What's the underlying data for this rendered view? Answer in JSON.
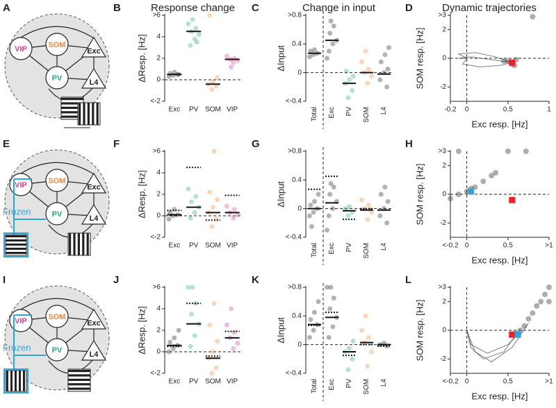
{
  "diagrams": [
    {
      "panel": "A",
      "nodes": [
        "VIP",
        "SOM",
        "PV",
        "Exc",
        "L4"
      ],
      "colors": [
        "#e0409a",
        "#f08a3c",
        "#2ca87a",
        "#222222",
        "#222222"
      ]
    },
    {
      "panel": "E",
      "nodes": [
        "VIP",
        "SOM",
        "PV",
        "Exc",
        "L4"
      ],
      "colors": [
        "#e0409a",
        "#f08a3c",
        "#2ca87a",
        "#222222",
        "#222222"
      ],
      "frozen": "Frozen",
      "frozen_color": "#29a8e0"
    },
    {
      "panel": "I",
      "nodes": [
        "VIP",
        "SOM",
        "PV",
        "Exc",
        "L4"
      ],
      "colors": [
        "#e0409a",
        "#f08a3c",
        "#2ca87a",
        "#222222",
        "#222222"
      ],
      "frozen": "Frozen",
      "frozen_color": "#29a8e0"
    }
  ],
  "chart_data": [
    {
      "type": "strip",
      "panel": "B",
      "title": "Response change",
      "ylabel": "ΔResp. [Hz]",
      "ylim": [
        -2,
        6
      ],
      "yticks": [
        {
          "value": -2,
          "label": "<-2"
        },
        0,
        2,
        4,
        {
          "value": 6,
          "label": ">6"
        }
      ],
      "groups": [
        {
          "name": "Exc",
          "color": "#222222",
          "mean": 0.5,
          "points": [
            0.3,
            0.4,
            0.5,
            0.6,
            0.7,
            0.5
          ]
        },
        {
          "name": "PV",
          "color": "#2ca87a",
          "mean": 4.5,
          "points": [
            3.2,
            3.8,
            4.2,
            4.5,
            4.8,
            5.2,
            5.6,
            3.5
          ]
        },
        {
          "name": "SOM",
          "color": "#f08a3c",
          "mean": -0.4,
          "points": [
            -0.9,
            -0.6,
            -0.4,
            -0.2,
            0.2,
            6
          ]
        },
        {
          "name": "VIP",
          "color": "#e0409a",
          "mean": 1.9,
          "points": [
            1.6,
            1.8,
            1.9,
            2.0,
            2.2,
            1.2
          ]
        }
      ]
    },
    {
      "type": "strip",
      "panel": "C",
      "title": "Change in input",
      "ylabel": "ΔInput",
      "ylim": [
        -0.4,
        0.8
      ],
      "yticks": [
        {
          "value": -0.4,
          "label": "<-0.4"
        },
        0,
        0.4,
        {
          "value": 0.8,
          "label": ">0.8"
        }
      ],
      "groups": [
        {
          "name": "Total",
          "color": "#222222",
          "mean": 0.27,
          "points": [
            0.22,
            0.25,
            0.27,
            0.3,
            0.32
          ]
        },
        {
          "name": "Exc",
          "color": "#222222",
          "mean": 0.45,
          "points": [
            0.3,
            0.4,
            0.45,
            0.55,
            0.65,
            0.2,
            0.72
          ]
        },
        {
          "name": "PV",
          "color": "#2ca87a",
          "mean": -0.15,
          "points": [
            -0.35,
            -0.25,
            -0.15,
            -0.1,
            -0.05,
            0.02
          ]
        },
        {
          "name": "SOM",
          "color": "#f08a3c",
          "mean": 0.0,
          "points": [
            -0.15,
            -0.05,
            0,
            0.05,
            0.15,
            0.3
          ]
        },
        {
          "name": "L4",
          "color": "#222222",
          "mean": -0.02,
          "points": [
            -0.2,
            -0.1,
            0,
            0.05,
            0.15,
            0.25,
            0.35
          ]
        }
      ]
    },
    {
      "type": "trajectory",
      "panel": "D",
      "title": "Dynamic trajectories",
      "xlabel": "Exc resp. [Hz]",
      "ylabel": "SOM resp. [Hz]",
      "xlim": [
        -0.2,
        1
      ],
      "xticks": [
        -0.2,
        0,
        0.5,
        1
      ],
      "ylim": [
        -3,
        3
      ],
      "yticks": [
        -2,
        0,
        2,
        {
          "value": 3,
          "label": ">3"
        }
      ],
      "trajectories": [
        {
          "x": [
            0,
            -0.1,
            0.1,
            0.35,
            0.55
          ],
          "y": [
            0,
            0.3,
            0.4,
            0.1,
            -0.3
          ]
        },
        {
          "x": [
            0,
            -0.05,
            0.15,
            0.4,
            0.55
          ],
          "y": [
            0,
            -0.4,
            -0.6,
            -0.5,
            -0.3
          ]
        },
        {
          "x": [
            0,
            -0.1,
            0.05,
            0.3,
            0.55
          ],
          "y": [
            0,
            0,
            0.1,
            -0.1,
            -0.3
          ]
        }
      ],
      "points": {
        "x": [
          0.5,
          0.55,
          0.6,
          0.58,
          0.45,
          0.8
        ],
        "y": [
          -0.2,
          -0.4,
          -0.1,
          -0.5,
          -0.2,
          2.9
        ]
      },
      "markers": [
        {
          "x": 0.55,
          "y": -0.3,
          "color": "#e8232a"
        }
      ]
    },
    {
      "type": "strip",
      "panel": "F",
      "ylabel": "ΔResp. [Hz]",
      "ylim": [
        -2,
        6
      ],
      "yticks": [
        {
          "value": -2,
          "label": "<-2"
        },
        0,
        2,
        4,
        {
          "value": 6,
          "label": ">6"
        }
      ],
      "groups": [
        {
          "name": "Exc",
          "color": "#222222",
          "mean": 0.1,
          "reference": 0.5,
          "points": [
            -0.3,
            0,
            0.1,
            0.3,
            0.6
          ]
        },
        {
          "name": "PV",
          "color": "#2ca87a",
          "mean": 0.8,
          "reference": 4.5,
          "points": [
            -0.2,
            0.3,
            0.8,
            1.3,
            1.8,
            2.5
          ]
        },
        {
          "name": "SOM",
          "color": "#f08a3c",
          "mean": 0.3,
          "reference": -0.4,
          "points": [
            -1,
            -0.3,
            0.3,
            0.8,
            1.5,
            2.2,
            6
          ]
        },
        {
          "name": "VIP",
          "color": "#e0409a",
          "mean": 0.3,
          "reference": 1.9,
          "points": [
            -0.2,
            0.1,
            0.3,
            0.6,
            0.9
          ]
        }
      ]
    },
    {
      "type": "strip",
      "panel": "G",
      "ylabel": "ΔInput",
      "ylim": [
        -0.4,
        0.8
      ],
      "yticks": [
        {
          "value": -0.4,
          "label": "<-0.4"
        },
        0,
        0.4,
        {
          "value": 0.8,
          "label": ">0.8"
        }
      ],
      "groups": [
        {
          "name": "Total",
          "color": "#222222",
          "mean": 0.0,
          "reference": 0.27,
          "points": [
            -0.1,
            -0.05,
            0,
            0.05,
            0.1,
            0.2,
            -0.25
          ]
        },
        {
          "name": "Exc",
          "color": "#222222",
          "mean": 0.08,
          "reference": 0.45,
          "points": [
            -0.1,
            0,
            0.1,
            0.2,
            0.3,
            -0.3,
            0.35
          ]
        },
        {
          "name": "PV",
          "color": "#2ca87a",
          "mean": -0.03,
          "reference": -0.15,
          "points": [
            -0.1,
            -0.05,
            0,
            0.03
          ]
        },
        {
          "name": "SOM",
          "color": "#f08a3c",
          "mean": -0.02,
          "reference": 0.0,
          "points": [
            -0.15,
            -0.05,
            0,
            0.05,
            0.12
          ]
        },
        {
          "name": "L4",
          "color": "#222222",
          "mean": -0.02,
          "reference": null,
          "points": [
            -0.2,
            -0.1,
            0,
            0.1,
            0.2,
            0.3
          ]
        }
      ]
    },
    {
      "type": "trajectory",
      "panel": "H",
      "xlabel": "Exc resp. [Hz]",
      "ylabel": "SOM resp. [Hz]",
      "xlim": [
        -0.2,
        1
      ],
      "xticks": [
        {
          "value": -0.2,
          "label": "<-0.2"
        },
        0,
        0.5,
        {
          "value": 1,
          "label": ">1"
        }
      ],
      "ylim": [
        -3,
        3
      ],
      "yticks": [
        -2,
        0,
        2,
        {
          "value": 3,
          "label": ">3"
        }
      ],
      "trajectories": [],
      "points": {
        "x": [
          -0.2,
          -0.1,
          0,
          0.05,
          0.1,
          0.2,
          0.3,
          -0.1,
          0.5,
          0.72,
          0.35
        ],
        "y": [
          -0.3,
          0,
          0.2,
          0.4,
          0.5,
          0.9,
          1.3,
          3,
          3,
          3,
          1.5
        ]
      },
      "markers": [
        {
          "x": 0.55,
          "y": -0.4,
          "color": "#e8232a"
        },
        {
          "x": 0.05,
          "y": 0.2,
          "color": "#29a8e0"
        }
      ]
    },
    {
      "type": "strip",
      "panel": "J",
      "ylabel": "ΔResp. [Hz]",
      "ylim": [
        -2,
        6
      ],
      "yticks": [
        {
          "value": -2,
          "label": "<-2"
        },
        0,
        2,
        4,
        {
          "value": 6,
          "label": ">6"
        }
      ],
      "groups": [
        {
          "name": "Exc",
          "color": "#222222",
          "mean": 0.6,
          "reference": 0.5,
          "points": [
            0,
            0.3,
            0.6,
            0.9,
            1.3,
            2
          ]
        },
        {
          "name": "PV",
          "color": "#2ca87a",
          "mean": 2.6,
          "reference": 4.5,
          "points": [
            0.5,
            1.5,
            2.6,
            3.5,
            4.5,
            6,
            6
          ]
        },
        {
          "name": "SOM",
          "color": "#f08a3c",
          "mean": -0.6,
          "reference": -0.4,
          "points": [
            -2,
            -1.5,
            -0.6,
            0,
            1,
            2.5,
            4.5
          ]
        },
        {
          "name": "VIP",
          "color": "#e0409a",
          "mean": 1.3,
          "reference": 1.9,
          "points": [
            0.3,
            0.8,
            1.3,
            1.8,
            2.5,
            4
          ]
        }
      ]
    },
    {
      "type": "strip",
      "panel": "K",
      "ylabel": "ΔInput",
      "ylim": [
        -0.4,
        0.8
      ],
      "yticks": [
        {
          "value": -0.4,
          "label": "<-0.4"
        },
        0,
        0.4,
        {
          "value": 0.8,
          "label": ">0.8"
        }
      ],
      "groups": [
        {
          "name": "Total",
          "color": "#222222",
          "mean": 0.28,
          "reference": 0.27,
          "points": [
            0.1,
            0.2,
            0.28,
            0.35,
            0.45,
            0.6
          ]
        },
        {
          "name": "Exc",
          "color": "#222222",
          "mean": 0.38,
          "reference": 0.45,
          "points": [
            0.1,
            0.25,
            0.38,
            0.5,
            0.65,
            0.8,
            0.8
          ]
        },
        {
          "name": "PV",
          "color": "#2ca87a",
          "mean": -0.1,
          "reference": -0.15,
          "points": [
            -0.35,
            -0.2,
            -0.1,
            -0.05,
            0.05
          ]
        },
        {
          "name": "SOM",
          "color": "#f08a3c",
          "mean": 0.03,
          "reference": 0.0,
          "points": [
            -0.3,
            -0.1,
            0.03,
            0.1,
            0.2,
            0.4
          ]
        },
        {
          "name": "L4",
          "color": "#222222",
          "mean": 0.0,
          "reference": -0.02,
          "points": [
            -0.02,
            0,
            0.02
          ]
        }
      ]
    },
    {
      "type": "trajectory",
      "panel": "L",
      "xlabel": "Exc resp. [Hz]",
      "ylabel": "SOM resp. [Hz]",
      "xlim": [
        -0.2,
        1
      ],
      "xticks": [
        {
          "value": -0.2,
          "label": "<-0.2"
        },
        0,
        0.5,
        {
          "value": 1,
          "label": ">1"
        }
      ],
      "ylim": [
        -3,
        3
      ],
      "yticks": [
        -2,
        0,
        2,
        {
          "value": 3,
          "label": ">3"
        }
      ],
      "trajectories": [
        {
          "x": [
            0,
            0.05,
            0.2,
            0.45,
            0.6
          ],
          "y": [
            0,
            -1.2,
            -2.0,
            -1.5,
            -0.3
          ]
        },
        {
          "x": [
            0,
            0.1,
            0.3,
            0.55,
            0.75
          ],
          "y": [
            0,
            -1.5,
            -2.2,
            -1.2,
            0.5
          ]
        },
        {
          "x": [
            0,
            0.05,
            0.25,
            0.5,
            0.62
          ],
          "y": [
            0,
            -1,
            -1.6,
            -1,
            -0.3
          ]
        }
      ],
      "points": {
        "x": [
          0.6,
          0.7,
          0.75,
          0.8,
          0.85,
          0.9,
          0.95,
          1,
          1,
          0.65
        ],
        "y": [
          -0.2,
          0.3,
          0.8,
          1.2,
          1.7,
          2,
          2.5,
          3,
          2,
          0
        ]
      },
      "markers": [
        {
          "x": 0.55,
          "y": -0.3,
          "color": "#e8232a"
        },
        {
          "x": 0.62,
          "y": -0.3,
          "color": "#29a8e0"
        }
      ]
    }
  ]
}
